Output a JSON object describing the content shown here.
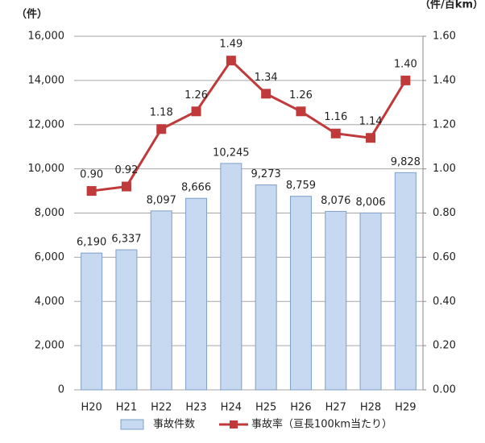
{
  "chart_data": {
    "type": "bar",
    "y_label": "（件）",
    "y2_label": "（件/百km）",
    "categories": [
      "H20",
      "H21",
      "H22",
      "H23",
      "H24",
      "H25",
      "H26",
      "H27",
      "H28",
      "H29"
    ],
    "series": [
      {
        "name": "事故件数",
        "type": "bar",
        "color": "#c6d9f1",
        "edge_color": "#7f9fc8",
        "values": [
          6190,
          6337,
          8097,
          8666,
          10245,
          9273,
          8759,
          8076,
          8006,
          9828
        ],
        "value_labels": [
          "6,190",
          "6,337",
          "8,097",
          "8,666",
          "10,245",
          "9,273",
          "8,759",
          "8,076",
          "8,006",
          "9,828"
        ]
      },
      {
        "name": "事故率（亘長100km当たり）",
        "type": "line",
        "axis": "y2",
        "color": "#c0393b",
        "values": [
          0.9,
          0.92,
          1.18,
          1.26,
          1.49,
          1.34,
          1.26,
          1.16,
          1.14,
          1.4
        ],
        "value_labels": [
          "0.90",
          "0.92",
          "1.18",
          "1.26",
          "1.49",
          "1.34",
          "1.26",
          "1.16",
          "1.14",
          "1.40"
        ]
      }
    ],
    "ylim": [
      0,
      16000
    ],
    "yticks": [
      0,
      {
        "value": 2000,
        "label": "2,000"
      },
      {
        "value": 4000,
        "label": "4,000"
      },
      {
        "value": 6000,
        "label": "6,000"
      },
      {
        "value": 8000,
        "label": "8,000"
      },
      {
        "value": 10000,
        "label": "10,000"
      },
      {
        "value": 12000,
        "label": "12,000"
      },
      {
        "value": 14000,
        "label": "14,000"
      },
      {
        "value": 16000,
        "label": "16,000"
      }
    ],
    "y2lim": [
      0,
      1.6
    ],
    "y2ticks": [
      {
        "value": 0,
        "label": "0.00"
      },
      {
        "value": 0.2,
        "label": "0.20"
      },
      {
        "value": 0.4,
        "label": "0.40"
      },
      {
        "value": 0.6,
        "label": "0.60"
      },
      {
        "value": 0.8,
        "label": "0.80"
      },
      {
        "value": 1.0,
        "label": "1.00"
      },
      {
        "value": 1.2,
        "label": "1.20"
      },
      {
        "value": 1.4,
        "label": "1.40"
      },
      {
        "value": 1.6,
        "label": "1.60"
      }
    ],
    "grid": true,
    "legend": "bottom"
  }
}
